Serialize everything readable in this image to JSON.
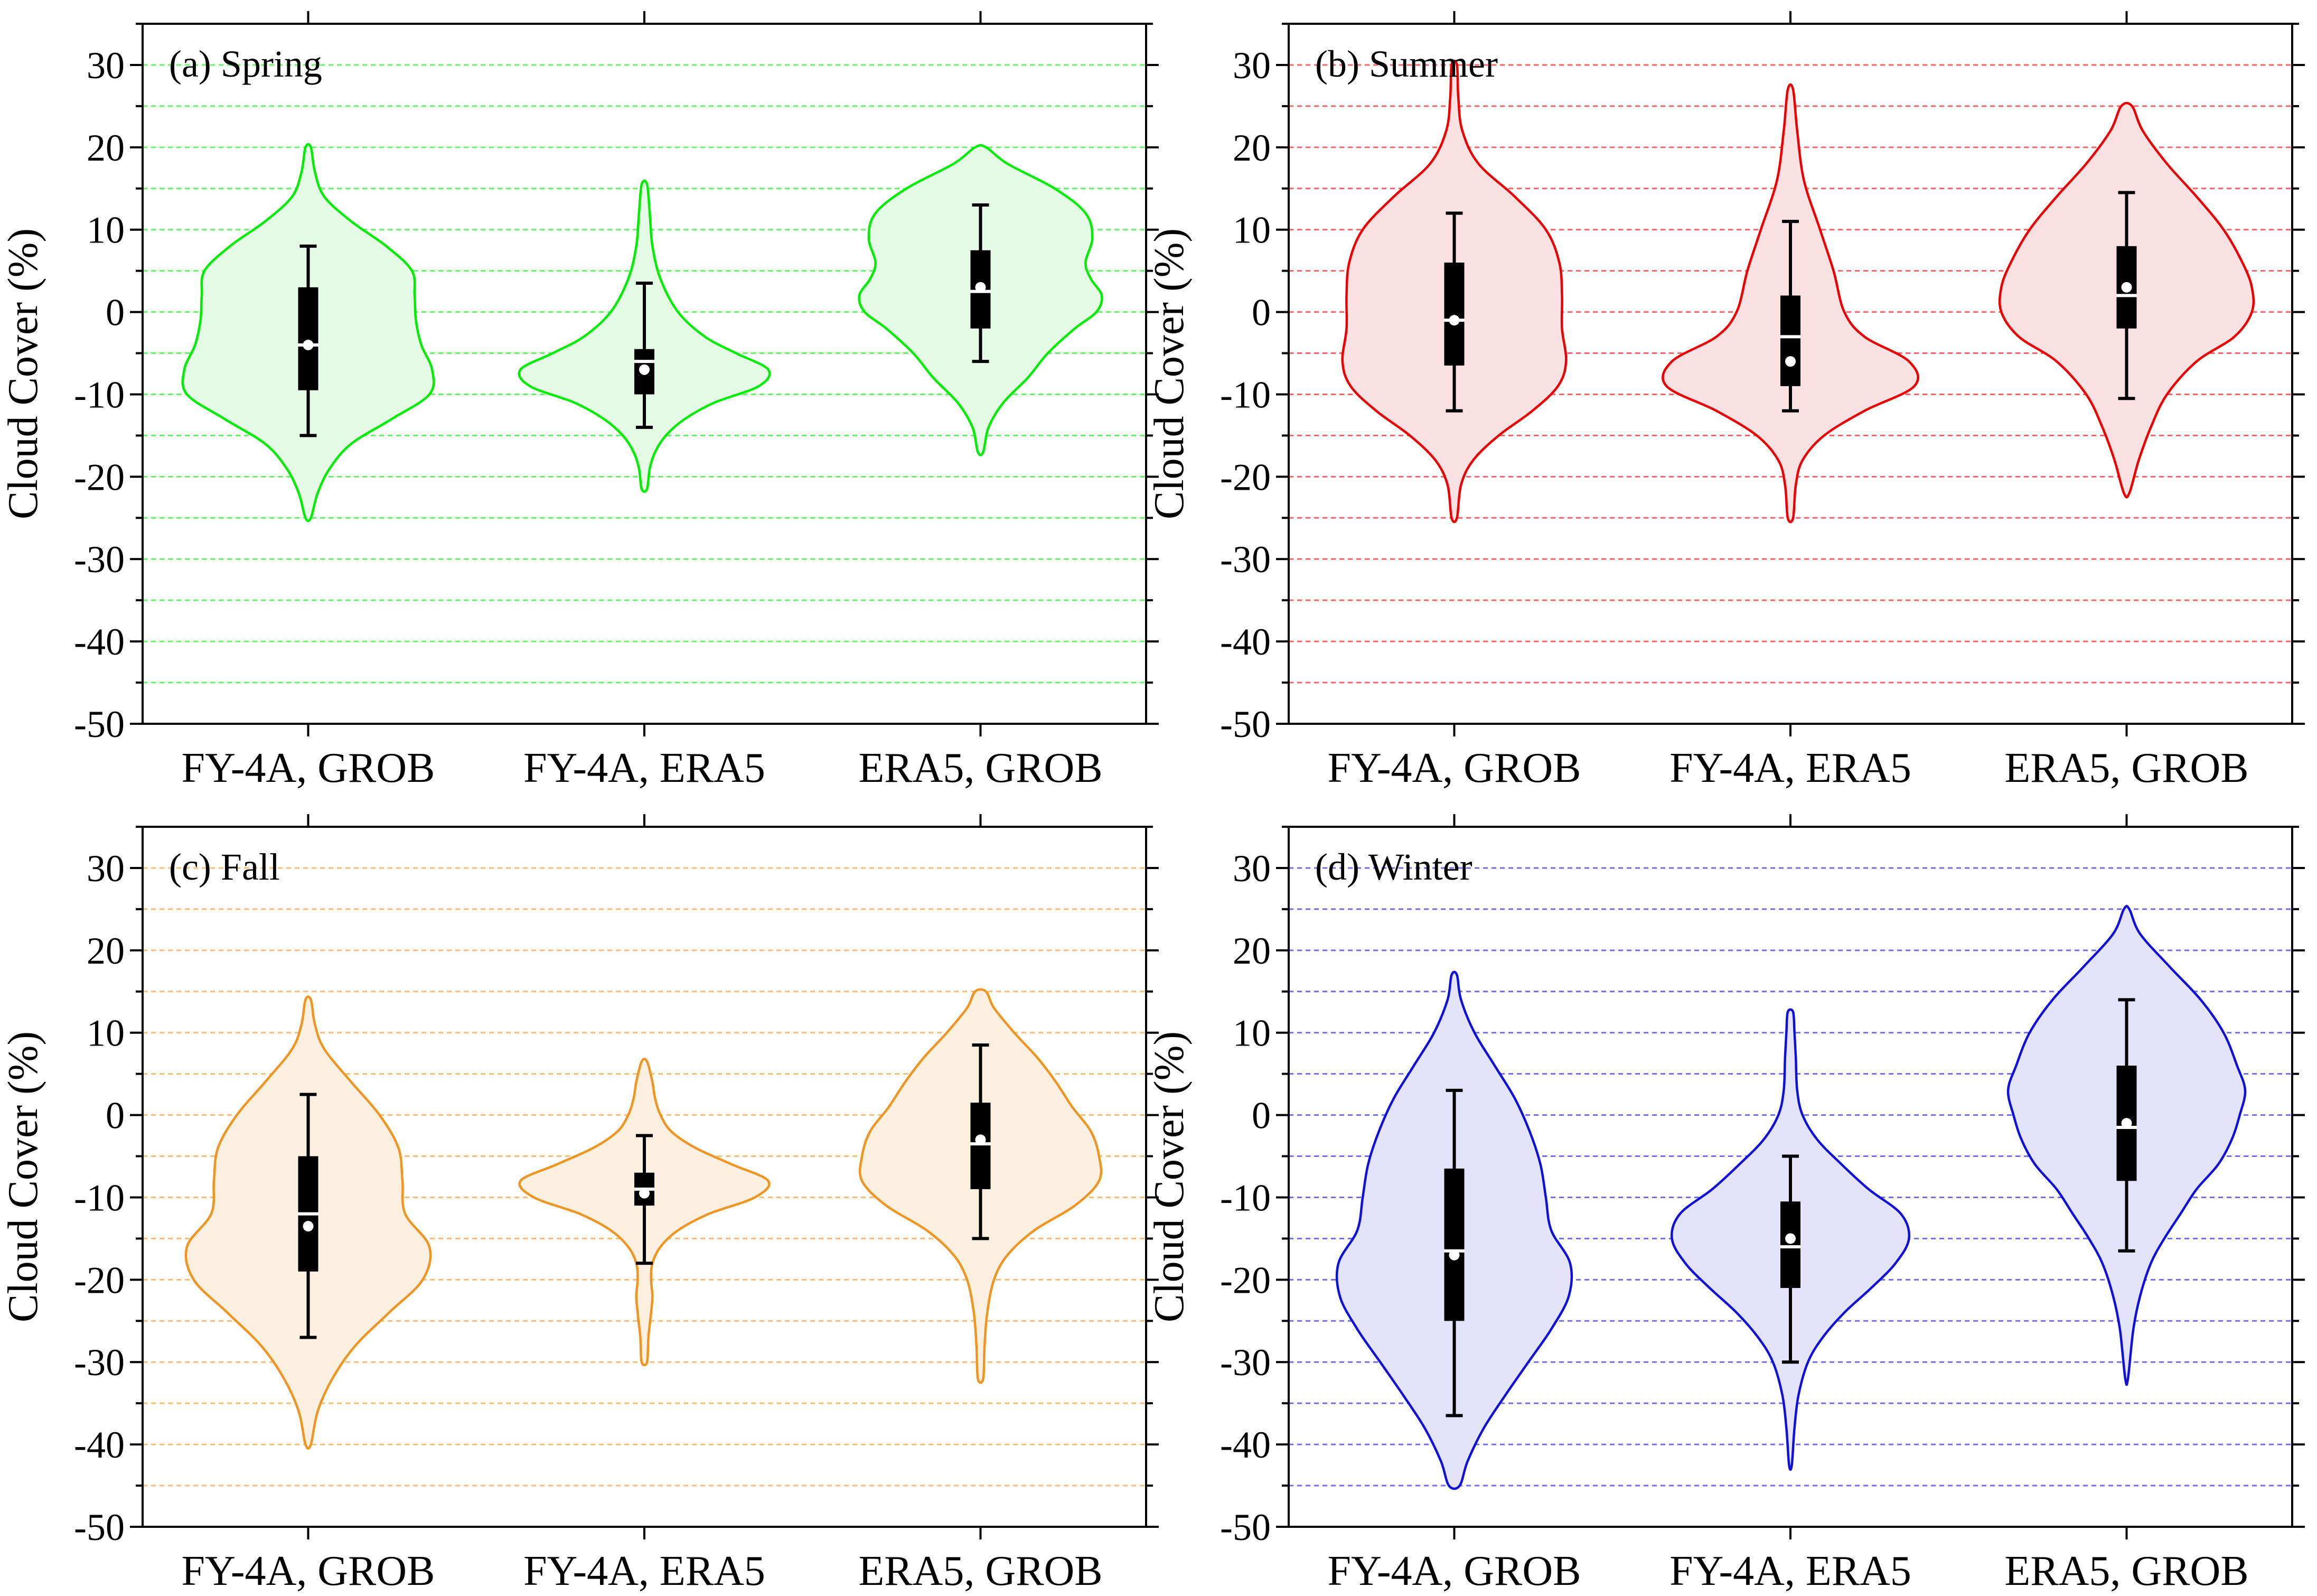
{
  "figure": {
    "ylabel": "Cloud Cover (%)"
  },
  "chart_data": [
    {
      "type": "violin",
      "title": "(a)  Spring",
      "color": "#00ee00",
      "fill": "#e6fbe6",
      "ylabel": "Cloud Cover (%)",
      "ylim": [
        -50,
        35
      ],
      "yticks": [
        30,
        20,
        10,
        0,
        -10,
        -20,
        -30,
        -40,
        -50
      ],
      "grid": "dashed every 5",
      "categories": [
        "FY-4A, GROB",
        "FY-4A, ERA5",
        "ERA5, GROB"
      ],
      "series": [
        {
          "name": "FY-4A, GROB",
          "min": -15,
          "q1": -9.5,
          "median": -4,
          "q3": 3,
          "max": 8,
          "mean": -4,
          "kde_range": [
            -25,
            20
          ],
          "profile": [
            [
              20,
              0.02
            ],
            [
              17,
              0.05
            ],
            [
              14,
              0.12
            ],
            [
              11,
              0.32
            ],
            [
              8,
              0.58
            ],
            [
              5,
              0.77
            ],
            [
              2,
              0.79
            ],
            [
              -1,
              0.8
            ],
            [
              -4,
              0.84
            ],
            [
              -7,
              0.92
            ],
            [
              -10,
              0.9
            ],
            [
              -13,
              0.62
            ],
            [
              -16,
              0.32
            ],
            [
              -19,
              0.16
            ],
            [
              -22,
              0.07
            ],
            [
              -25,
              0.02
            ]
          ]
        },
        {
          "name": "FY-4A, ERA5",
          "min": -14,
          "q1": -10,
          "median": -6,
          "q3": -4.5,
          "max": 3.5,
          "mean": -7,
          "kde_range": [
            -21.5,
            15.5
          ],
          "profile": [
            [
              15.5,
              0.02
            ],
            [
              12,
              0.04
            ],
            [
              8,
              0.06
            ],
            [
              4,
              0.12
            ],
            [
              0,
              0.25
            ],
            [
              -3,
              0.45
            ],
            [
              -5,
              0.68
            ],
            [
              -7,
              0.92
            ],
            [
              -9,
              0.85
            ],
            [
              -11,
              0.52
            ],
            [
              -13,
              0.3
            ],
            [
              -15,
              0.16
            ],
            [
              -17,
              0.08
            ],
            [
              -19,
              0.04
            ],
            [
              -21.5,
              0.02
            ]
          ]
        },
        {
          "name": "ERA5, GROB",
          "min": -6,
          "q1": -2,
          "median": 2.5,
          "q3": 7.5,
          "max": 13,
          "mean": 3,
          "kde_range": [
            -17,
            20
          ],
          "profile": [
            [
              20,
              0.04
            ],
            [
              18,
              0.2
            ],
            [
              15,
              0.55
            ],
            [
              12,
              0.78
            ],
            [
              9,
              0.83
            ],
            [
              6,
              0.78
            ],
            [
              4,
              0.82
            ],
            [
              2,
              0.9
            ],
            [
              0,
              0.86
            ],
            [
              -2,
              0.7
            ],
            [
              -5,
              0.5
            ],
            [
              -8,
              0.35
            ],
            [
              -11,
              0.17
            ],
            [
              -14,
              0.06
            ],
            [
              -17,
              0.02
            ]
          ]
        }
      ]
    },
    {
      "type": "violin",
      "title": "(b)  Summer",
      "color": "#ee0000",
      "fill": "#fbe1e1",
      "ylabel": "Cloud Cover (%)",
      "ylim": [
        -50,
        35
      ],
      "yticks": [
        30,
        20,
        10,
        0,
        -10,
        -20,
        -30,
        -40,
        -50
      ],
      "grid": "dashed every 5",
      "categories": [
        "FY-4A, GROB",
        "FY-4A, ERA5",
        "ERA5, GROB"
      ],
      "series": [
        {
          "name": "FY-4A, GROB",
          "min": -12,
          "q1": -6.5,
          "median": -1,
          "q3": 6,
          "max": 12,
          "mean": -1,
          "kde_range": [
            -25,
            30
          ],
          "profile": [
            [
              30,
              0.02
            ],
            [
              26,
              0.03
            ],
            [
              22,
              0.06
            ],
            [
              18,
              0.18
            ],
            [
              14,
              0.45
            ],
            [
              10,
              0.68
            ],
            [
              6,
              0.78
            ],
            [
              2,
              0.8
            ],
            [
              -2,
              0.8
            ],
            [
              -6,
              0.83
            ],
            [
              -9,
              0.77
            ],
            [
              -12,
              0.58
            ],
            [
              -15,
              0.33
            ],
            [
              -18,
              0.14
            ],
            [
              -21,
              0.05
            ],
            [
              -25,
              0.02
            ]
          ]
        },
        {
          "name": "FY-4A, ERA5",
          "min": -12,
          "q1": -9,
          "median": -3,
          "q3": 2,
          "max": 11,
          "mean": -6,
          "kde_range": [
            -25,
            27
          ],
          "profile": [
            [
              27,
              0.02
            ],
            [
              22,
              0.05
            ],
            [
              16,
              0.1
            ],
            [
              10,
              0.22
            ],
            [
              5,
              0.32
            ],
            [
              0,
              0.4
            ],
            [
              -3,
              0.55
            ],
            [
              -6,
              0.88
            ],
            [
              -9,
              0.92
            ],
            [
              -12,
              0.55
            ],
            [
              -15,
              0.25
            ],
            [
              -18,
              0.09
            ],
            [
              -21,
              0.04
            ],
            [
              -25,
              0.02
            ]
          ]
        },
        {
          "name": "ERA5, GROB",
          "min": -10.5,
          "q1": -2,
          "median": 2,
          "q3": 8,
          "max": 14.5,
          "mean": 3,
          "kde_range": [
            -22,
            25
          ],
          "profile": [
            [
              25,
              0.04
            ],
            [
              22,
              0.12
            ],
            [
              18,
              0.3
            ],
            [
              14,
              0.52
            ],
            [
              10,
              0.72
            ],
            [
              6,
              0.86
            ],
            [
              3,
              0.93
            ],
            [
              0,
              0.93
            ],
            [
              -3,
              0.8
            ],
            [
              -6,
              0.52
            ],
            [
              -10,
              0.3
            ],
            [
              -14,
              0.18
            ],
            [
              -18,
              0.09
            ],
            [
              -22,
              0.02
            ]
          ]
        }
      ]
    },
    {
      "type": "violin",
      "title": "(c)  Fall",
      "color": "#f29420",
      "fill": "#fdf0e1",
      "ylabel": "Cloud Cover (%)",
      "ylim": [
        -50,
        35
      ],
      "yticks": [
        30,
        20,
        10,
        0,
        -10,
        -20,
        -30,
        -40,
        -50
      ],
      "grid": "dashed every 5",
      "categories": [
        "FY-4A, GROB",
        "FY-4A, ERA5",
        "ERA5, GROB"
      ],
      "series": [
        {
          "name": "FY-4A, GROB",
          "min": -27,
          "q1": -19,
          "median": -12,
          "q3": -5,
          "max": 2.5,
          "mean": -13.5,
          "kde_range": [
            -40,
            14
          ],
          "profile": [
            [
              14,
              0.02
            ],
            [
              11,
              0.05
            ],
            [
              8,
              0.12
            ],
            [
              4,
              0.32
            ],
            [
              0,
              0.53
            ],
            [
              -4,
              0.67
            ],
            [
              -8,
              0.7
            ],
            [
              -12,
              0.72
            ],
            [
              -16,
              0.9
            ],
            [
              -20,
              0.85
            ],
            [
              -24,
              0.6
            ],
            [
              -28,
              0.35
            ],
            [
              -32,
              0.18
            ],
            [
              -36,
              0.07
            ],
            [
              -40,
              0.02
            ]
          ]
        },
        {
          "name": "FY-4A, ERA5",
          "min": -18,
          "q1": -11,
          "median": -9,
          "q3": -7,
          "max": -2.5,
          "mean": -9.5,
          "kde_range": [
            -30,
            6.5
          ],
          "profile": [
            [
              6.5,
              0.02
            ],
            [
              4,
              0.06
            ],
            [
              2,
              0.08
            ],
            [
              0,
              0.12
            ],
            [
              -2,
              0.2
            ],
            [
              -4,
              0.38
            ],
            [
              -6,
              0.65
            ],
            [
              -8,
              0.92
            ],
            [
              -10,
              0.82
            ],
            [
              -12,
              0.48
            ],
            [
              -14,
              0.25
            ],
            [
              -16,
              0.12
            ],
            [
              -18,
              0.06
            ],
            [
              -20,
              0.05
            ],
            [
              -22,
              0.06
            ],
            [
              -24,
              0.05
            ],
            [
              -27,
              0.03
            ],
            [
              -30,
              0.02
            ]
          ]
        },
        {
          "name": "ERA5, GROB",
          "min": -15,
          "q1": -9,
          "median": -3.5,
          "q3": 1.5,
          "max": 8.5,
          "mean": -3,
          "kde_range": [
            -32,
            15
          ],
          "profile": [
            [
              15,
              0.04
            ],
            [
              13,
              0.1
            ],
            [
              10,
              0.25
            ],
            [
              7,
              0.42
            ],
            [
              4,
              0.56
            ],
            [
              1,
              0.68
            ],
            [
              -2,
              0.82
            ],
            [
              -5,
              0.88
            ],
            [
              -8,
              0.88
            ],
            [
              -11,
              0.7
            ],
            [
              -14,
              0.4
            ],
            [
              -17,
              0.2
            ],
            [
              -20,
              0.1
            ],
            [
              -24,
              0.05
            ],
            [
              -28,
              0.03
            ],
            [
              -32,
              0.02
            ]
          ]
        }
      ]
    },
    {
      "type": "violin",
      "title": "(d)  Winter",
      "color": "#1010dd",
      "fill": "#e3e3fb",
      "ylabel": "Cloud Cover (%)",
      "ylim": [
        -50,
        35
      ],
      "yticks": [
        30,
        20,
        10,
        0,
        -10,
        -20,
        -30,
        -40,
        -50
      ],
      "grid": "dashed every 5",
      "categories": [
        "FY-4A, GROB",
        "FY-4A, ERA5",
        "ERA5, GROB"
      ],
      "series": [
        {
          "name": "FY-4A, GROB",
          "min": -36.5,
          "q1": -25,
          "median": -16.5,
          "q3": -6.5,
          "max": 3,
          "mean": -17,
          "kde_range": [
            -45,
            17
          ],
          "profile": [
            [
              17,
              0.02
            ],
            [
              14,
              0.05
            ],
            [
              10,
              0.15
            ],
            [
              6,
              0.3
            ],
            [
              2,
              0.45
            ],
            [
              -2,
              0.56
            ],
            [
              -6,
              0.64
            ],
            [
              -10,
              0.68
            ],
            [
              -14,
              0.72
            ],
            [
              -18,
              0.86
            ],
            [
              -22,
              0.85
            ],
            [
              -26,
              0.72
            ],
            [
              -30,
              0.55
            ],
            [
              -34,
              0.38
            ],
            [
              -38,
              0.22
            ],
            [
              -42,
              0.1
            ],
            [
              -45,
              0.04
            ]
          ]
        },
        {
          "name": "FY-4A, ERA5",
          "min": -30,
          "q1": -21,
          "median": -16,
          "q3": -10.5,
          "max": -5,
          "mean": -15,
          "kde_range": [
            -42.5,
            12.5
          ],
          "profile": [
            [
              12.5,
              0.02
            ],
            [
              10,
              0.03
            ],
            [
              7,
              0.04
            ],
            [
              3,
              0.05
            ],
            [
              0,
              0.09
            ],
            [
              -3,
              0.2
            ],
            [
              -6,
              0.38
            ],
            [
              -9,
              0.58
            ],
            [
              -12,
              0.82
            ],
            [
              -15,
              0.88
            ],
            [
              -18,
              0.78
            ],
            [
              -21,
              0.6
            ],
            [
              -24,
              0.4
            ],
            [
              -27,
              0.24
            ],
            [
              -30,
              0.13
            ],
            [
              -34,
              0.06
            ],
            [
              -38,
              0.03
            ],
            [
              -42.5,
              0.01
            ]
          ]
        },
        {
          "name": "ERA5, GROB",
          "min": -16.5,
          "q1": -8,
          "median": -1.5,
          "q3": 6,
          "max": 14,
          "mean": -1,
          "kde_range": [
            -32,
            25
          ],
          "profile": [
            [
              25,
              0.02
            ],
            [
              22,
              0.1
            ],
            [
              18,
              0.32
            ],
            [
              14,
              0.55
            ],
            [
              10,
              0.72
            ],
            [
              6,
              0.82
            ],
            [
              3,
              0.88
            ],
            [
              0,
              0.84
            ],
            [
              -3,
              0.78
            ],
            [
              -6,
              0.68
            ],
            [
              -9,
              0.52
            ],
            [
              -12,
              0.4
            ],
            [
              -15,
              0.28
            ],
            [
              -18,
              0.18
            ],
            [
              -22,
              0.1
            ],
            [
              -26,
              0.05
            ],
            [
              -32,
              0.01
            ]
          ]
        }
      ]
    }
  ]
}
